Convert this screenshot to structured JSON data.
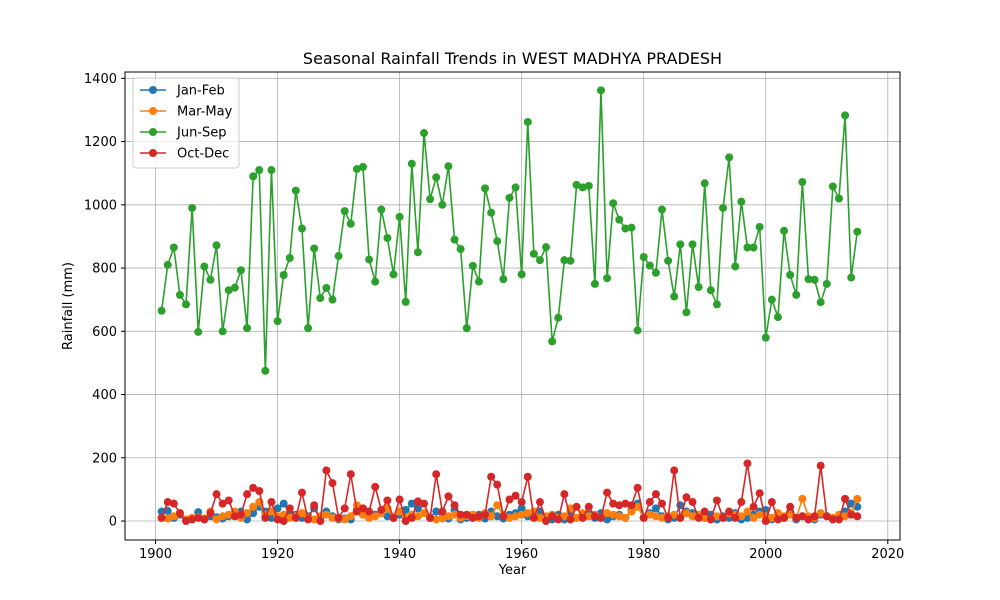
{
  "chart_data": {
    "type": "line",
    "title": "Seasonal Rainfall Trends in WEST MADHYA PRADESH",
    "xlabel": "Year",
    "ylabel": "Rainfall (mm)",
    "xlim": [
      1895,
      2022
    ],
    "ylim": [
      -60,
      1420
    ],
    "xticks": [
      1900,
      1920,
      1940,
      1960,
      1980,
      2000,
      2020
    ],
    "yticks": [
      0,
      200,
      400,
      600,
      800,
      1000,
      1200,
      1400
    ],
    "grid": true,
    "legend_position": "top-left",
    "x_start": 1901,
    "series": [
      {
        "name": "Jan-Feb",
        "color": "#1f77b4",
        "values": [
          30,
          32,
          10,
          20,
          5,
          8,
          28,
          5,
          15,
          12,
          8,
          15,
          20,
          30,
          5,
          25,
          45,
          30,
          10,
          40,
          55,
          25,
          20,
          10,
          15,
          40,
          8,
          30,
          15,
          5,
          8,
          5,
          35,
          20,
          10,
          20,
          30,
          15,
          10,
          20,
          35,
          55,
          40,
          25,
          10,
          30,
          25,
          8,
          35,
          5,
          10,
          15,
          20,
          8,
          30,
          15,
          8,
          20,
          25,
          40,
          15,
          20,
          30,
          10,
          5,
          20,
          5,
          30,
          10,
          15,
          20,
          10,
          25,
          5,
          15,
          20,
          10,
          35,
          55,
          10,
          25,
          40,
          15,
          5,
          10,
          50,
          30,
          25,
          15,
          10,
          20,
          5,
          15,
          10,
          25,
          5,
          10,
          20,
          30,
          35,
          5,
          15,
          10,
          30,
          5,
          15,
          10,
          5,
          20,
          15,
          10,
          15,
          30,
          55,
          45
        ]
      },
      {
        "name": "Mar-May",
        "color": "#ff7f0e",
        "values": [
          10,
          8,
          15,
          25,
          5,
          10,
          12,
          8,
          30,
          5,
          15,
          20,
          30,
          10,
          25,
          45,
          60,
          20,
          30,
          15,
          20,
          10,
          15,
          25,
          10,
          5,
          15,
          20,
          10,
          8,
          5,
          15,
          50,
          20,
          10,
          15,
          25,
          40,
          10,
          30,
          10,
          20,
          15,
          25,
          10,
          5,
          8,
          15,
          20,
          10,
          15,
          20,
          10,
          25,
          15,
          50,
          20,
          10,
          15,
          20,
          25,
          30,
          10,
          15,
          20,
          10,
          15,
          40,
          10,
          25,
          15,
          20,
          10,
          25,
          20,
          15,
          10,
          30,
          45,
          10,
          20,
          15,
          10,
          15,
          20,
          10,
          25,
          15,
          20,
          10,
          5,
          15,
          10,
          25,
          20,
          15,
          30,
          10,
          20,
          15,
          10,
          25,
          15,
          20,
          10,
          70,
          15,
          10,
          25,
          15,
          10,
          20,
          15,
          25,
          70
        ]
      },
      {
        "name": "Jun-Sep",
        "color": "#2ca02c",
        "values": [
          665,
          810,
          865,
          715,
          685,
          990,
          598,
          805,
          763,
          872,
          600,
          730,
          738,
          793,
          610,
          1090,
          1110,
          475,
          1110,
          632,
          778,
          832,
          1045,
          925,
          610,
          862,
          705,
          737,
          700,
          838,
          980,
          940,
          1113,
          1120,
          827,
          757,
          985,
          895,
          780,
          962,
          693,
          1130,
          850,
          1227,
          1018,
          1087,
          1000,
          1122,
          890,
          860,
          610,
          807,
          757,
          1052,
          975,
          885,
          765,
          1022,
          1055,
          780,
          1262,
          845,
          825,
          866,
          568,
          643,
          825,
          823,
          1063,
          1055,
          1060,
          750,
          1362,
          768,
          1005,
          953,
          925,
          928,
          603,
          835,
          808,
          785,
          985,
          823,
          710,
          875,
          660,
          875,
          740,
          1068,
          730,
          685,
          990,
          1150,
          805,
          1010,
          865,
          865,
          930,
          580,
          700,
          645,
          918,
          778,
          715,
          1072,
          765,
          763,
          692,
          750,
          1058,
          1020,
          1283,
          770,
          915
        ]
      },
      {
        "name": "Oct-Dec",
        "color": "#d62728",
        "values": [
          10,
          60,
          55,
          25,
          0,
          5,
          10,
          5,
          25,
          85,
          55,
          65,
          15,
          20,
          85,
          105,
          95,
          10,
          60,
          5,
          0,
          40,
          10,
          90,
          5,
          50,
          0,
          160,
          120,
          10,
          40,
          148,
          30,
          40,
          30,
          108,
          35,
          65,
          10,
          68,
          0,
          10,
          62,
          55,
          10,
          148,
          30,
          78,
          50,
          20,
          20,
          10,
          15,
          20,
          140,
          115,
          15,
          68,
          80,
          60,
          140,
          10,
          60,
          0,
          15,
          5,
          85,
          5,
          45,
          10,
          45,
          15,
          10,
          90,
          55,
          50,
          55,
          50,
          105,
          10,
          60,
          85,
          55,
          10,
          160,
          10,
          75,
          60,
          10,
          30,
          5,
          65,
          10,
          30,
          10,
          60,
          182,
          45,
          88,
          0,
          60,
          5,
          10,
          45,
          10,
          15,
          5,
          15,
          175,
          15,
          5,
          5,
          70,
          20,
          15
        ]
      }
    ]
  }
}
